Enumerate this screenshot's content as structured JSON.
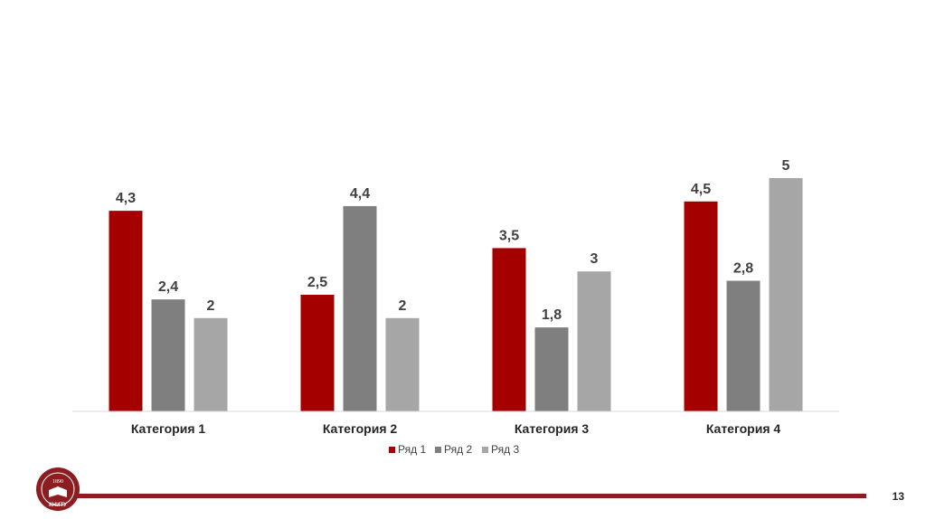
{
  "colors": {
    "series1": "#a40000",
    "series2": "#7f7f7f",
    "series3": "#a6a6a6",
    "brand": "#8d1d21"
  },
  "logo": {
    "year": "1890",
    "text": "КНИТУ"
  },
  "page_number": "13",
  "chart_data": {
    "type": "bar",
    "categories": [
      "Категория 1",
      "Категория 2",
      "Категория 3",
      "Категория 4"
    ],
    "series": [
      {
        "name": "Ряд 1",
        "values": [
          4.3,
          2.5,
          3.5,
          4.5
        ],
        "labels": [
          "4,3",
          "2,5",
          "3,5",
          "4,5"
        ]
      },
      {
        "name": "Ряд 2",
        "values": [
          2.4,
          4.4,
          1.8,
          2.8
        ],
        "labels": [
          "2,4",
          "4,4",
          "1,8",
          "2,8"
        ]
      },
      {
        "name": "Ряд 3",
        "values": [
          2,
          2,
          3,
          5
        ],
        "labels": [
          "2",
          "2",
          "3",
          "5"
        ]
      }
    ],
    "title": "",
    "xlabel": "",
    "ylabel": "",
    "ylim": [
      0,
      5
    ],
    "grid": false,
    "legend": "bottom"
  }
}
